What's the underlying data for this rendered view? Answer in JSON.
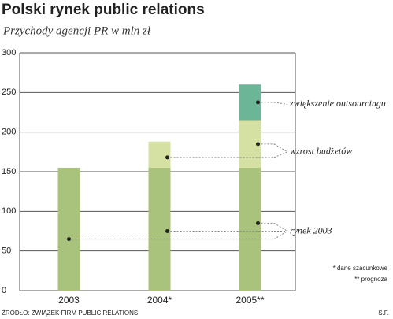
{
  "chart_data": {
    "type": "bar",
    "stacked": true,
    "title": "Polski rynek public relations",
    "subtitle": "Przychody agencji PR w mln zł",
    "categories": [
      "2003",
      "2004*",
      "2005**"
    ],
    "series": [
      {
        "name": "rynek 2003",
        "color": "#a9c27c",
        "values": [
          155,
          155,
          155
        ]
      },
      {
        "name": "wzrost budżetów",
        "color": "#d5e0a3",
        "values": [
          null,
          33,
          60
        ]
      },
      {
        "name": "zwiększenie outsourcingu",
        "color": "#6cb597",
        "values": [
          null,
          null,
          45
        ]
      }
    ],
    "ylim": [
      0,
      300
    ],
    "yticks": [
      0,
      50,
      100,
      150,
      200,
      250,
      300
    ],
    "grid": true,
    "notes": [
      "* dane szacunkowe",
      "** prognoza"
    ],
    "source": "ŹRÓDŁO: ZWIĄZEK FIRM PUBLIC RELATIONS",
    "author": "S.F."
  }
}
